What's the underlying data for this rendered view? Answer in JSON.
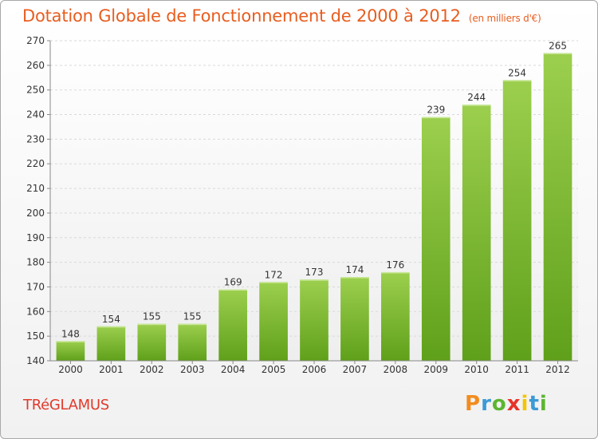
{
  "header": {
    "title": "Dotation Globale de Fonctionnement de 2000 à 2012",
    "unit": "(en milliers d'€)"
  },
  "footer": {
    "town": "TRéGLAMUS",
    "brand": "Proxiti",
    "brand_colors": [
      "#f28c1e",
      "#3c9ad6",
      "#5bb531",
      "#e8332a",
      "#f5c400",
      "#3c9ad6",
      "#5bb531"
    ]
  },
  "colors": {
    "title": "#e85d1f",
    "town": "#e03a2c",
    "bar_light": "#9ccf4e",
    "bar_dark": "#5fa01a",
    "grid": "#d9d9d9"
  },
  "chart_data": {
    "type": "bar",
    "categories": [
      "2000",
      "2001",
      "2002",
      "2003",
      "2004",
      "2005",
      "2006",
      "2007",
      "2008",
      "2009",
      "2010",
      "2011",
      "2012"
    ],
    "values": [
      148,
      154,
      155,
      155,
      169,
      172,
      173,
      174,
      176,
      239,
      244,
      254,
      265
    ],
    "title": "Dotation Globale de Fonctionnement de 2000 à 2012",
    "ylabel": "",
    "xlabel": "",
    "ylim": [
      140,
      270
    ],
    "yticks": [
      140,
      150,
      160,
      170,
      180,
      190,
      200,
      210,
      220,
      230,
      240,
      250,
      260,
      270
    ],
    "grid": true
  }
}
